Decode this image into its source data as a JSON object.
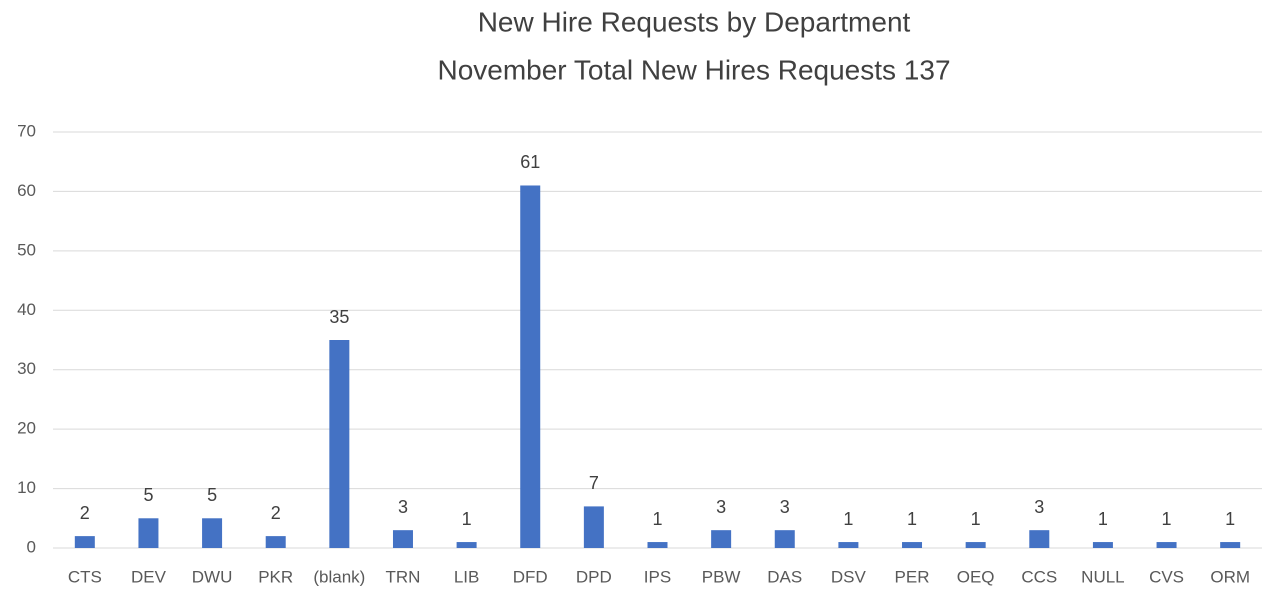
{
  "chart_data": {
    "type": "bar",
    "title": "New Hire Requests by Department",
    "subtitle": "November Total New Hires Requests 137",
    "categories": [
      "CTS",
      "DEV",
      "DWU",
      "PKR",
      "(blank)",
      "TRN",
      "LIB",
      "DFD",
      "DPD",
      "IPS",
      "PBW",
      "DAS",
      "DSV",
      "PER",
      "OEQ",
      "CCS",
      "NULL",
      "CVS",
      "ORM"
    ],
    "values": [
      2,
      5,
      5,
      2,
      35,
      3,
      1,
      61,
      7,
      1,
      3,
      3,
      1,
      1,
      1,
      3,
      1,
      1,
      1
    ],
    "color": "#4472c4",
    "ylim": [
      0,
      70
    ],
    "yticks": [
      0,
      10,
      20,
      30,
      40,
      50,
      60,
      70
    ],
    "grid": true
  }
}
